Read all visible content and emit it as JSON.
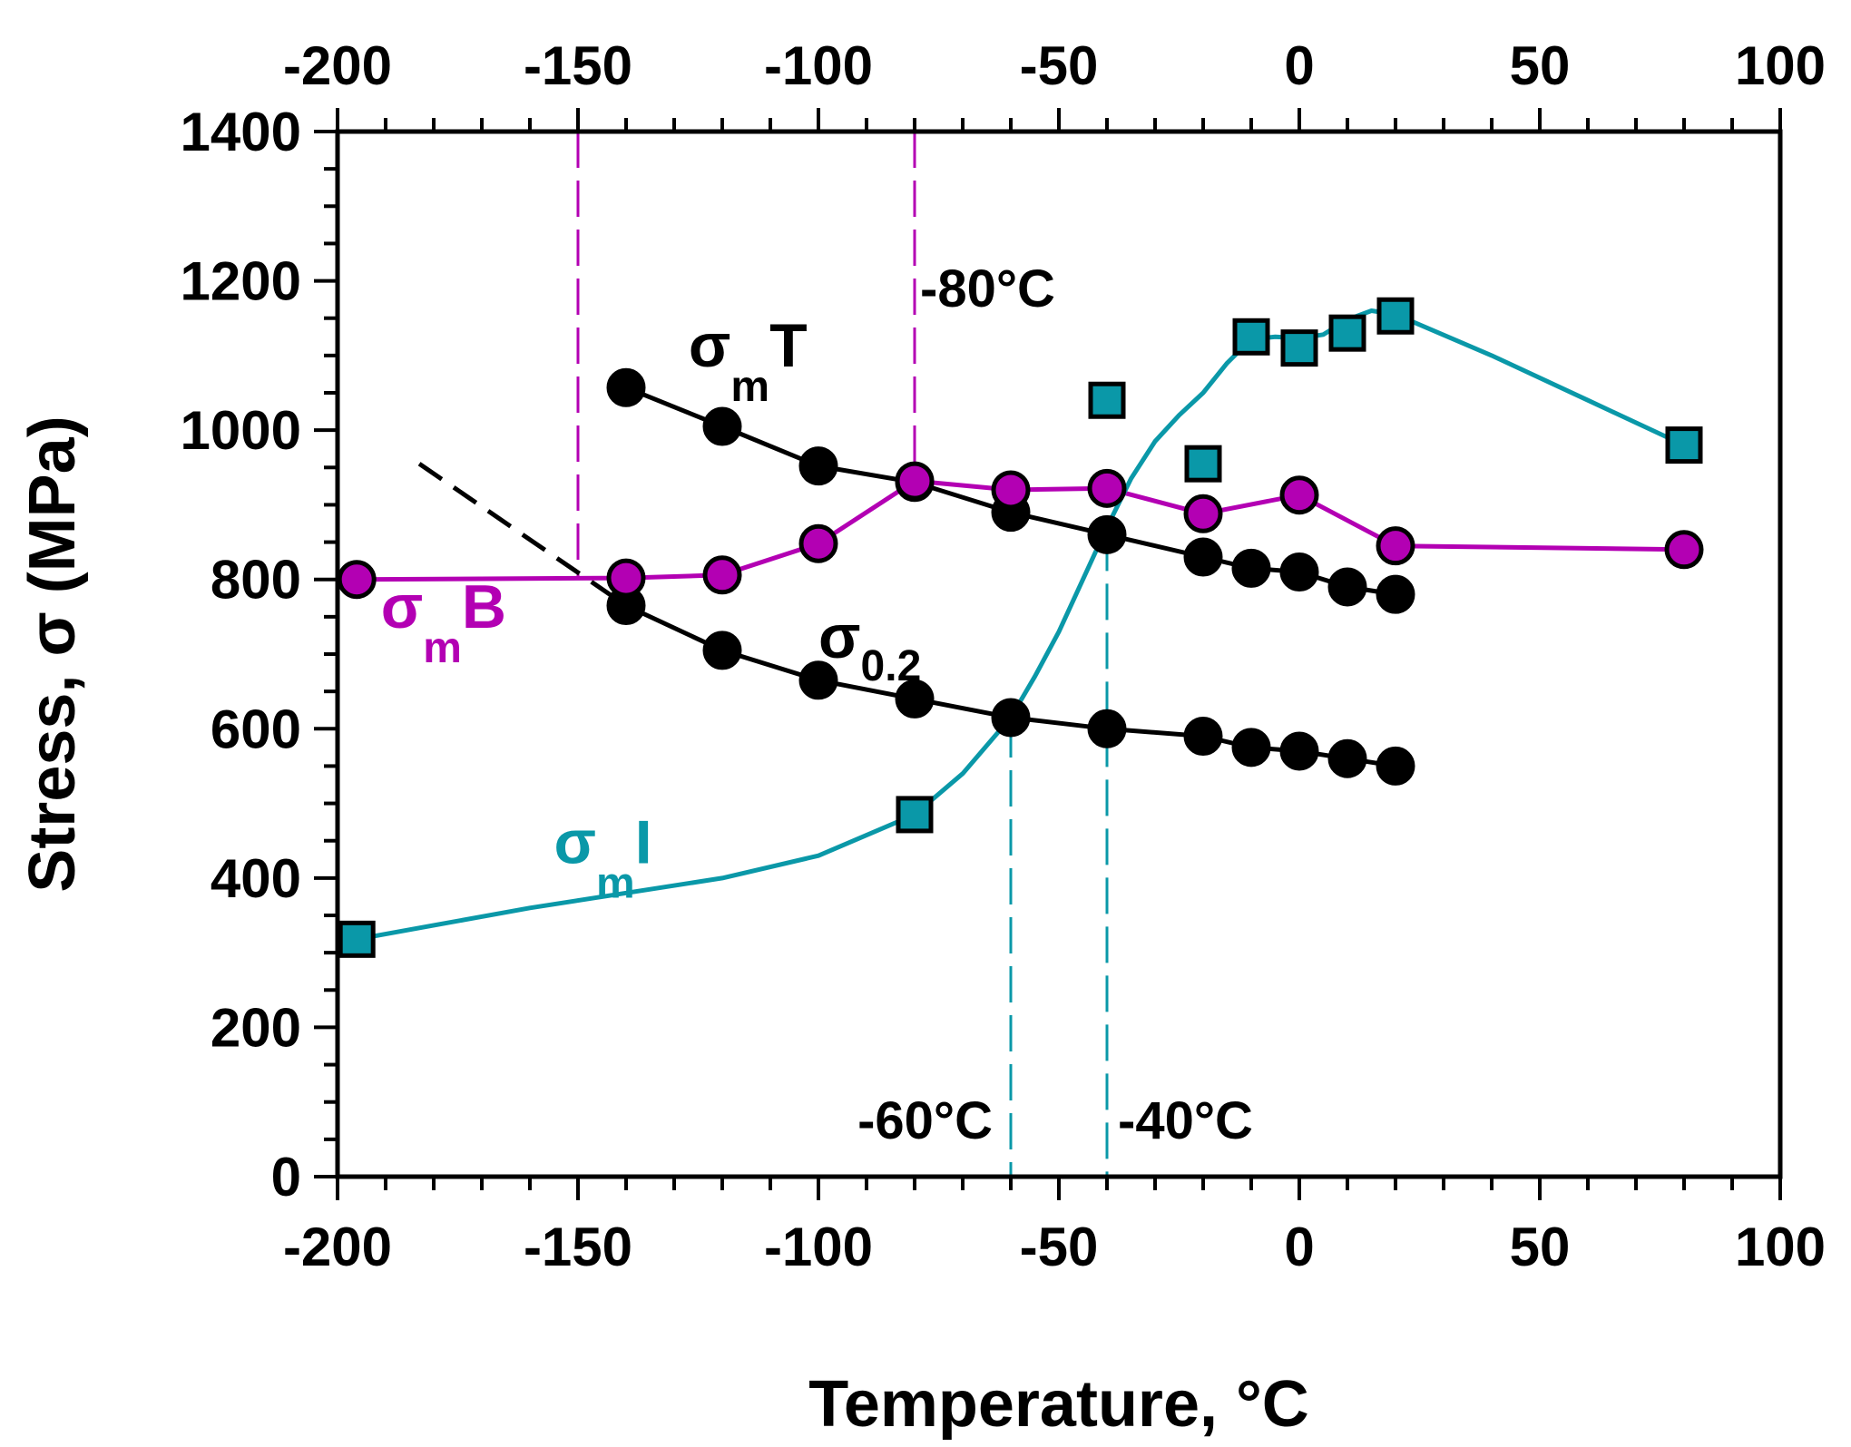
{
  "chart_data": {
    "type": "line",
    "title": "",
    "xlabel": "Temperature, °C",
    "ylabel": "Stress, σ (MPa)",
    "xlim": [
      -200,
      100
    ],
    "ylim": [
      0,
      1400
    ],
    "x_ticks": [
      "-200",
      "-150",
      "-100",
      "-50",
      "0",
      "50",
      "100"
    ],
    "y_ticks": [
      "0",
      "200",
      "400",
      "600",
      "800",
      "1000",
      "1200",
      "1400"
    ],
    "grid": false,
    "legend": "none",
    "series": [
      {
        "label": [
          "σ",
          "m",
          "T"
        ],
        "color": "#000000",
        "marker": "circle",
        "x": [
          -140,
          -120,
          -100,
          -80,
          -60,
          -40,
          -20,
          -10,
          0,
          10,
          20
        ],
        "y": [
          1057,
          1005,
          952,
          930,
          890,
          860,
          830,
          815,
          810,
          790,
          780
        ]
      },
      {
        "label": [
          "σ",
          "0.2",
          ""
        ],
        "color": "#000000",
        "marker": "circle",
        "x": [
          -140,
          -120,
          -100,
          -80,
          -60,
          -40,
          -20,
          -10,
          0,
          10,
          20
        ],
        "y": [
          765,
          705,
          665,
          640,
          615,
          600,
          590,
          575,
          570,
          560,
          550
        ],
        "extrapolation": {
          "x": [
            -183,
            -140
          ],
          "y": [
            955,
            765
          ],
          "style": "dashed"
        }
      },
      {
        "label": [
          "σ",
          "m",
          "B"
        ],
        "color": "#B300B3",
        "marker": "circle",
        "x": [
          -196,
          -140,
          -120,
          -100,
          -80,
          -60,
          -40,
          -20,
          0,
          20,
          80
        ],
        "y": [
          800,
          802,
          806,
          848,
          932,
          920,
          922,
          888,
          913,
          845,
          840
        ]
      },
      {
        "label": [
          "σ",
          "m",
          "I"
        ],
        "color": "#0A98A8",
        "marker": "square",
        "x": [
          -196,
          -80,
          -40,
          -20,
          -10,
          0,
          10,
          20,
          80
        ],
        "y": [
          318,
          485,
          1040,
          955,
          1125,
          1110,
          1130,
          1153,
          980
        ],
        "fit_curve": {
          "x": [
            -196,
            -160,
            -120,
            -100,
            -80,
            -70,
            -60,
            -55,
            -50,
            -45,
            -40,
            -35,
            -30,
            -25,
            -20,
            -15,
            -10,
            -5,
            0,
            5,
            10,
            15,
            20,
            40,
            60,
            80
          ],
          "y": [
            318,
            360,
            400,
            430,
            485,
            540,
            615,
            670,
            730,
            800,
            870,
            935,
            985,
            1020,
            1050,
            1090,
            1122,
            1125,
            1123,
            1128,
            1148,
            1160,
            1155,
            1100,
            1040,
            980
          ]
        }
      }
    ],
    "reference_lines": [
      {
        "x": -150,
        "y_from": 800,
        "color": "#B300B3",
        "style": "dashed"
      },
      {
        "x": -80,
        "y_from": 932,
        "color": "#B300B3",
        "style": "dashed",
        "label": "-80°C"
      },
      {
        "x": -60,
        "y_to": 610,
        "color": "#0A98A8",
        "style": "dashed",
        "label": "-60°C"
      },
      {
        "x": -40,
        "y_to": 860,
        "color": "#0A98A8",
        "style": "dashed",
        "label": "-40°C"
      }
    ]
  }
}
